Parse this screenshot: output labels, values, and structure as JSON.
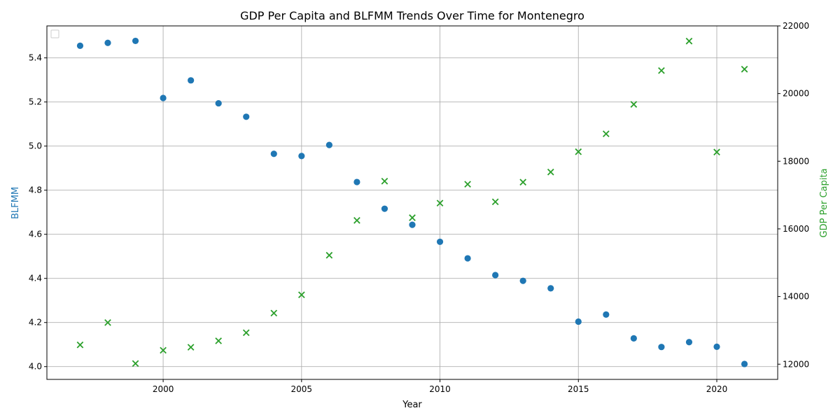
{
  "chart_data": {
    "type": "scatter",
    "title": "GDP Per Capita and BLFMM Trends Over Time for Montenegro",
    "xlabel": "Year",
    "ylabel_left": "BLFMM",
    "ylabel_right": "GDP Per Capita",
    "x": [
      1997,
      1998,
      1999,
      2000,
      2001,
      2002,
      2003,
      2004,
      2005,
      2006,
      2007,
      2008,
      2009,
      2010,
      2011,
      2012,
      2013,
      2014,
      2015,
      2016,
      2017,
      2018,
      2019,
      2020,
      2021
    ],
    "series": [
      {
        "axis": "left",
        "marker": "circle",
        "color": "#1f77b4",
        "values": [
          5.455,
          5.468,
          5.477,
          5.218,
          5.298,
          5.194,
          5.133,
          4.965,
          4.955,
          5.005,
          4.837,
          4.716,
          4.643,
          4.566,
          4.491,
          4.415,
          4.389,
          4.355,
          4.204,
          4.236,
          4.128,
          4.089,
          4.111,
          4.09,
          4.012
        ]
      },
      {
        "axis": "right",
        "marker": "x",
        "color": "#2ca02c",
        "values": [
          12570,
          13230,
          12020,
          12410,
          12500,
          12690,
          12930,
          13510,
          14050,
          15220,
          16250,
          17410,
          16330,
          16760,
          17320,
          16800,
          17380,
          17680,
          18280,
          18810,
          19680,
          20680,
          21550,
          18270,
          20720
        ]
      }
    ],
    "xlim": [
      1995.8,
      2022.2
    ],
    "xticks": [
      2000,
      2005,
      2010,
      2015,
      2020
    ],
    "ylim_left": [
      3.942,
      5.545
    ],
    "yticks_left": [
      "4.0",
      "4.2",
      "4.4",
      "4.6",
      "4.8",
      "5.0",
      "5.2",
      "5.4"
    ],
    "ylim_right": [
      11550,
      22000
    ],
    "yticks_right": [
      12000,
      14000,
      16000,
      18000,
      20000,
      22000
    ],
    "grid": true,
    "legend": "top-left (empty)",
    "colors": {
      "left_axis_label": "#1f77b4",
      "right_axis_label": "#2ca02c"
    }
  }
}
